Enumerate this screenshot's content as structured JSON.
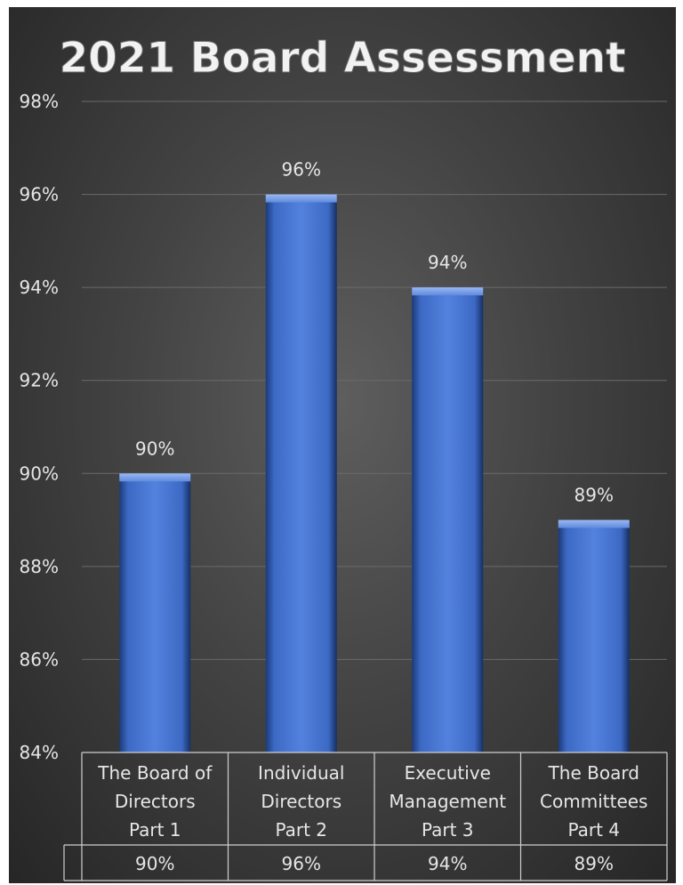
{
  "chart_data": {
    "type": "bar",
    "title": "2021 Board Assessment",
    "categories": [
      [
        "The Board of",
        "Directors",
        "Part 1"
      ],
      [
        "Individual",
        "Directors",
        "Part 2"
      ],
      [
        "Executive",
        "Management",
        "Part 3"
      ],
      [
        "The Board",
        "Committees",
        "Part 4"
      ]
    ],
    "values": [
      90,
      96,
      94,
      89
    ],
    "data_labels": [
      "90%",
      "96%",
      "94%",
      "89%"
    ],
    "table_values": [
      "90%",
      "96%",
      "94%",
      "89%"
    ],
    "yticks": [
      "84%",
      "86%",
      "88%",
      "90%",
      "92%",
      "94%",
      "96%",
      "98%"
    ],
    "ylim": [
      84,
      98
    ],
    "ytick_step": 2,
    "grid": true,
    "legend": "none",
    "data_table": true,
    "colors": {
      "bar": "#4472c4",
      "bar_light": "#6f95e0",
      "bar_dark": "#1f3d7a",
      "grid": "#6a6a6a",
      "text": "#e6e6e6",
      "table_border": "#cfcfcf"
    }
  }
}
